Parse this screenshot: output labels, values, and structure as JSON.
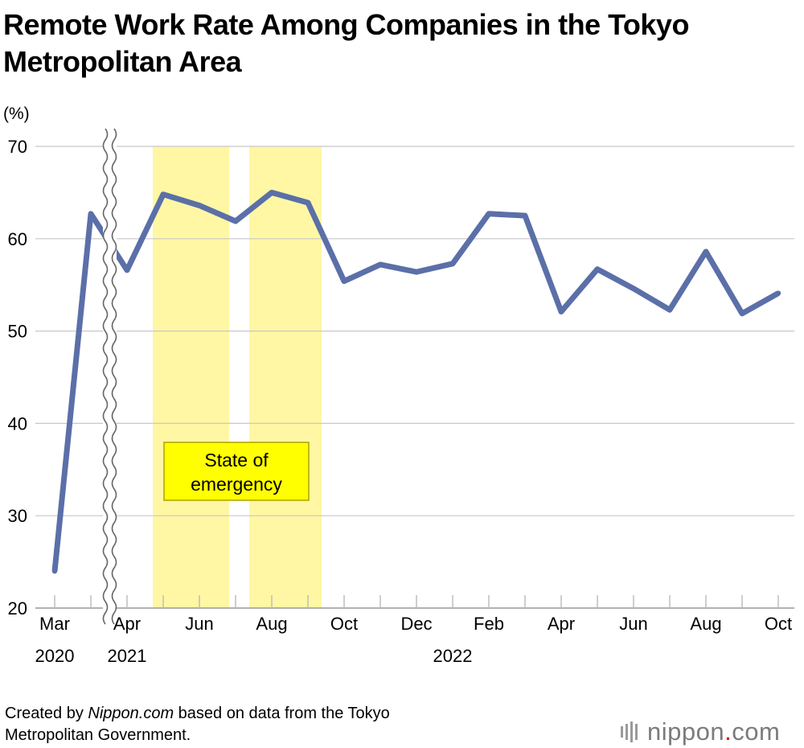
{
  "title": {
    "line1": "Remote Work Rate Among Companies in the Tokyo",
    "line2": "Metropolitan Area"
  },
  "chart_data": {
    "type": "line",
    "title": "Remote Work Rate Among Companies in the Tokyo Metropolitan Area",
    "ylabel": "(%)",
    "ylim": [
      20,
      70
    ],
    "yticks": [
      20,
      30,
      40,
      50,
      60,
      70
    ],
    "grid": true,
    "x_months": [
      "2020-03",
      "2021-03",
      "2021-04",
      "2021-05",
      "2021-06",
      "2021-07",
      "2021-08",
      "2021-09",
      "2021-10",
      "2021-11",
      "2021-12",
      "2022-01",
      "2022-02",
      "2022-03",
      "2022-04",
      "2022-05",
      "2022-06",
      "2022-07",
      "2022-08",
      "2022-09",
      "2022-10"
    ],
    "tick_labels": [
      {
        "label": "Mar",
        "year": "2020"
      },
      {
        "label": "Apr",
        "year": "2021"
      },
      {
        "label": "Jun",
        "year": ""
      },
      {
        "label": "Aug",
        "year": ""
      },
      {
        "label": "Oct",
        "year": ""
      },
      {
        "label": "Dec",
        "year": ""
      },
      {
        "label": "Feb",
        "year": ""
      },
      {
        "label": "Apr",
        "year": ""
      },
      {
        "label": "Jun",
        "year": ""
      },
      {
        "label": "Aug",
        "year": ""
      },
      {
        "label": "Oct",
        "year": ""
      }
    ],
    "year_labels": [
      "2020",
      "2021",
      "2022"
    ],
    "axis_break": "between 2020-03 and 2021-03",
    "series": [
      {
        "name": "Remote work rate",
        "color": "#5b6fa8",
        "values": [
          24.0,
          62.7,
          56.6,
          64.8,
          63.6,
          61.9,
          65.0,
          63.9,
          55.4,
          57.2,
          56.4,
          57.3,
          62.7,
          62.5,
          52.1,
          56.7,
          54.6,
          52.3,
          58.6,
          51.9,
          54.1
        ]
      }
    ],
    "shaded_periods": [
      {
        "label": "State of emergency",
        "start": "2021-04 mid",
        "end": "2021-06 end"
      },
      {
        "label": "State of emergency",
        "start": "2021-07 mid",
        "end": "2021-09 end"
      }
    ],
    "annotation": {
      "line1": "State of",
      "line2": "emergency"
    },
    "shade_color": "#fff7a3",
    "annotation_color": "#ffff00"
  },
  "credit": {
    "line1_pre": "Created by ",
    "line1_site": "Nippon.com",
    "line1_post": " based on data from the Tokyo",
    "line2": "Metropolitan Government."
  },
  "logo": {
    "name": "nippon",
    "dot": ".",
    "tld": "com"
  }
}
